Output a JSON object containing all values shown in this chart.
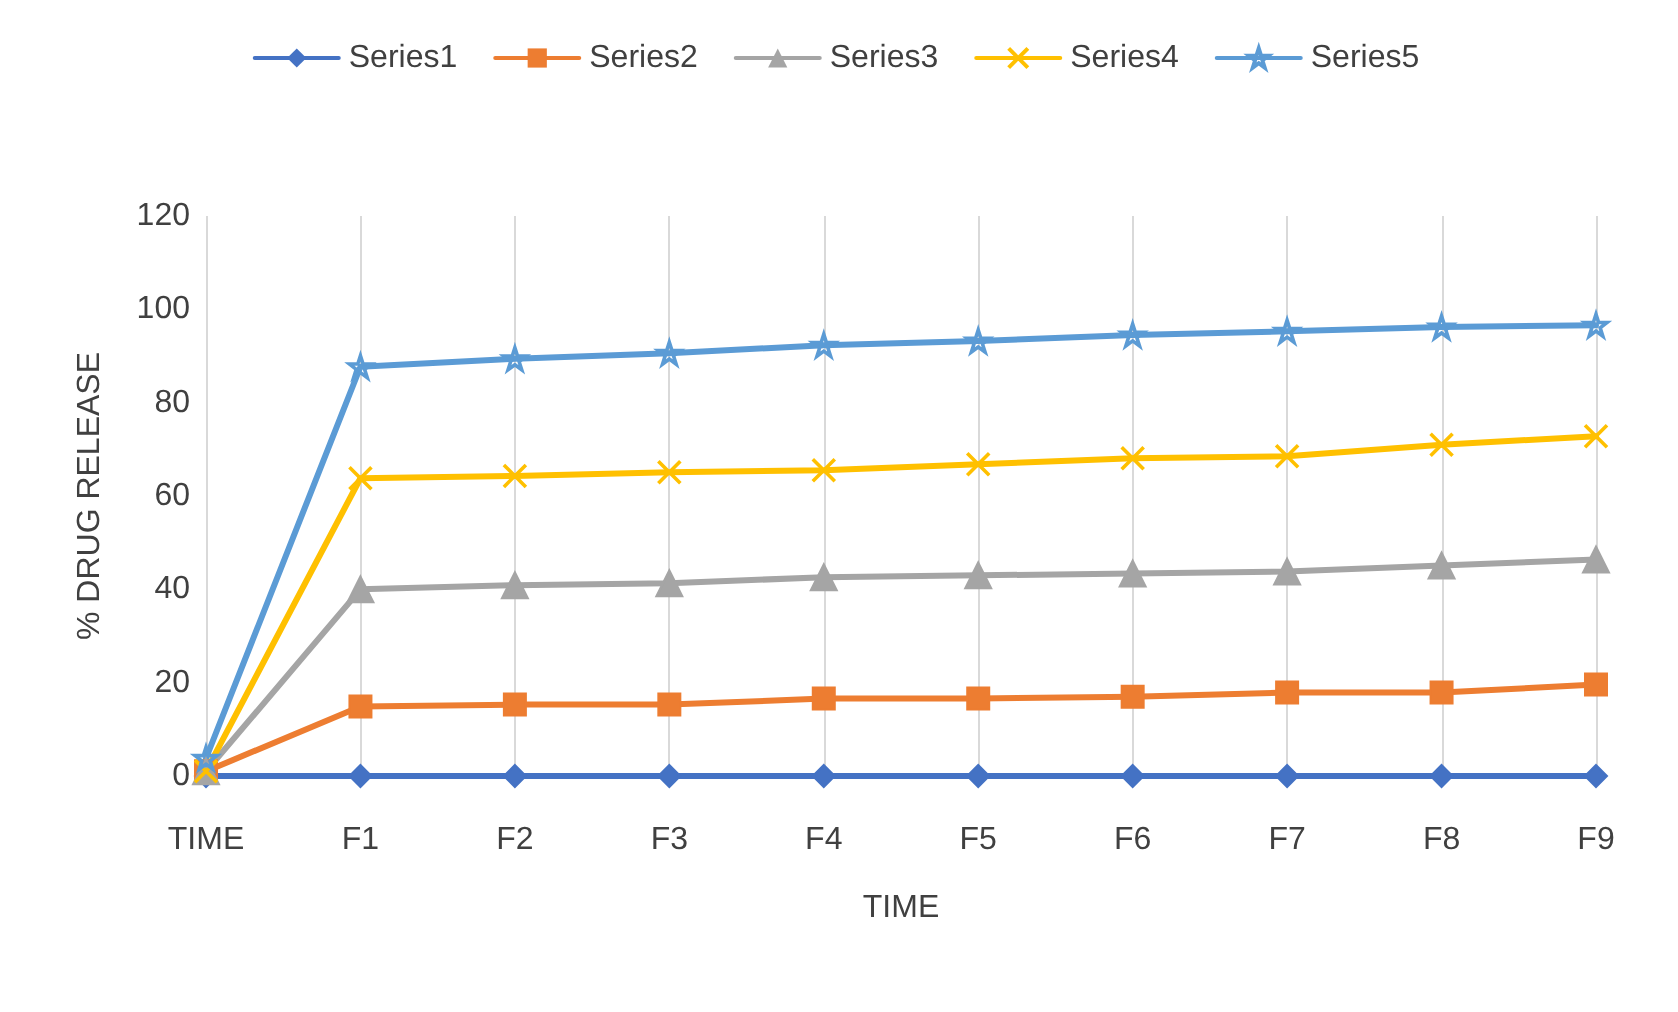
{
  "chart_data": {
    "type": "line",
    "xlabel": "TIME",
    "ylabel": "% DRUG RELEASE",
    "categories": [
      "TIME",
      "F1",
      "F2",
      "F3",
      "F4",
      "F5",
      "F6",
      "F7",
      "F8",
      "F9"
    ],
    "ylim": [
      0,
      120
    ],
    "yticks": [
      0,
      20,
      40,
      60,
      80,
      100,
      120
    ],
    "grid": "x",
    "legend": "top",
    "line_style": "solid",
    "series": [
      {
        "name": "Series1",
        "color": "#4472c4",
        "marker": "diamond",
        "values": [
          0,
          0,
          0,
          0,
          0,
          0,
          0,
          0,
          0,
          0
        ]
      },
      {
        "name": "Series2",
        "color": "#ed7d31",
        "marker": "square",
        "values": [
          1,
          14.9,
          15.3,
          15.3,
          16.6,
          16.6,
          17,
          17.9,
          17.9,
          19.6
        ]
      },
      {
        "name": "Series3",
        "color": "#a5a5a5",
        "marker": "triangle",
        "values": [
          1,
          40,
          40.9,
          41.3,
          42.6,
          43,
          43.4,
          43.8,
          45.1,
          46.4
        ]
      },
      {
        "name": "Series4",
        "color": "#ffc000",
        "marker": "cross",
        "values": [
          1,
          63.8,
          64.3,
          65.1,
          65.5,
          66.8,
          68.1,
          68.5,
          71,
          72.8
        ]
      },
      {
        "name": "Series5",
        "color": "#5b9bd5",
        "marker": "star",
        "values": [
          3.8,
          87.7,
          89.4,
          90.6,
          92.3,
          93.2,
          94.5,
          95.3,
          96.2,
          96.6
        ]
      }
    ]
  }
}
